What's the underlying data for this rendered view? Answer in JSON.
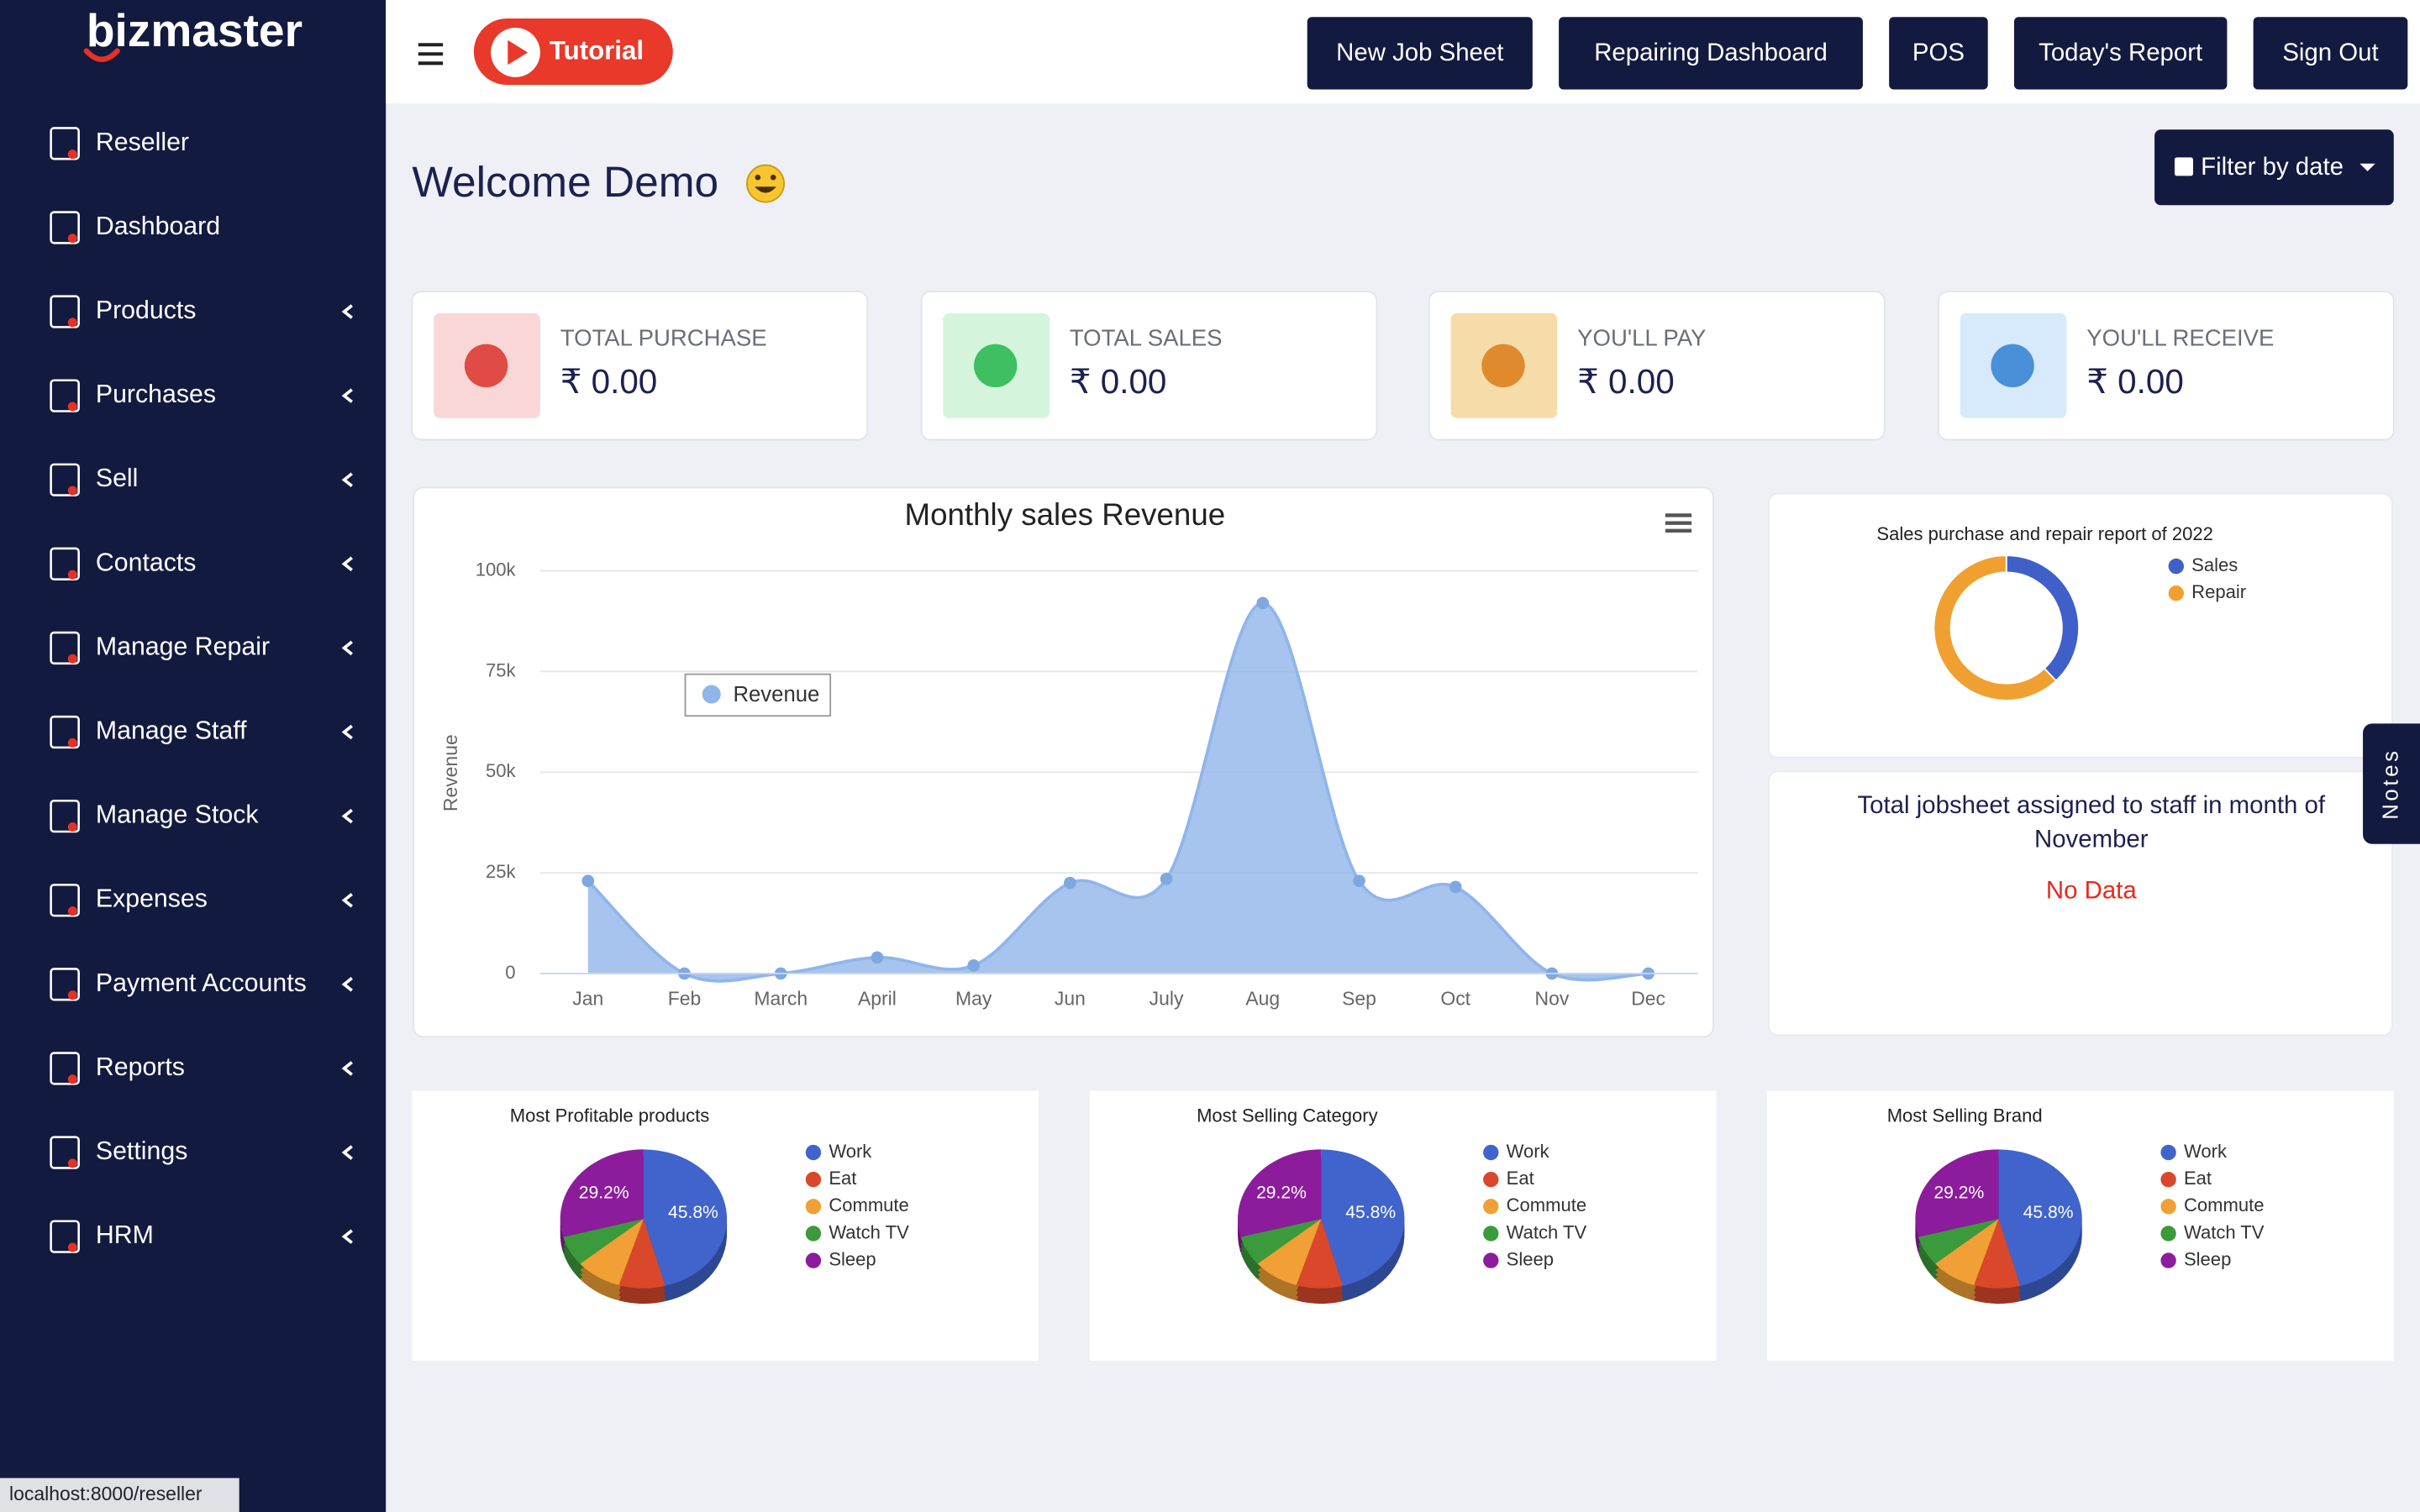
{
  "sidebar": {
    "brand": "bizmaster",
    "menu": [
      {
        "label": "Reseller",
        "submenu": false
      },
      {
        "label": "Dashboard",
        "submenu": false
      },
      {
        "label": "Products",
        "submenu": true
      },
      {
        "label": "Purchases",
        "submenu": true
      },
      {
        "label": "Sell",
        "submenu": true
      },
      {
        "label": "Contacts",
        "submenu": true
      },
      {
        "label": "Manage Repair",
        "submenu": true
      },
      {
        "label": "Manage Staff",
        "submenu": true
      },
      {
        "label": "Manage Stock",
        "submenu": true
      },
      {
        "label": "Expenses",
        "submenu": true
      },
      {
        "label": "Payment Accounts",
        "submenu": true
      },
      {
        "label": "Reports",
        "submenu": true
      },
      {
        "label": "Settings",
        "submenu": true
      },
      {
        "label": "HRM",
        "submenu": true
      }
    ]
  },
  "topbar": {
    "tutorial": "Tutorial",
    "buttons": [
      "New Job Sheet",
      "Repairing Dashboard",
      "POS",
      "Today's Report",
      "Sign Out"
    ]
  },
  "welcome": "Welcome Demo",
  "filter": "Filter by date",
  "cards": [
    {
      "label": "TOTAL PURCHASE",
      "value": "₹ 0.00"
    },
    {
      "label": "TOTAL SALES",
      "value": "₹ 0.00"
    },
    {
      "label": "YOU'LL PAY",
      "value": "₹ 0.00"
    },
    {
      "label": "YOU'LL RECEIVE",
      "value": "₹ 0.00"
    }
  ],
  "jobsheet": {
    "title": "Total jobsheet assigned to staff in month of November",
    "message": "No Data"
  },
  "notes": "Notes",
  "status_bar": "localhost:8000/reseller",
  "chart_data": [
    {
      "type": "area",
      "title": "Monthly sales Revenue",
      "y_label": "Revenue",
      "categories": [
        "Jan",
        "Feb",
        "March",
        "April",
        "May",
        "Jun",
        "July",
        "Aug",
        "Sep",
        "Oct",
        "Nov",
        "Dec"
      ],
      "series": [
        {
          "name": "Revenue",
          "color": "#90b5ea",
          "values": [
            23000,
            0,
            0,
            4000,
            2000,
            22500,
            23500,
            92000,
            23000,
            21500,
            0,
            0
          ]
        }
      ],
      "ylim": [
        0,
        100000
      ],
      "yticks": [
        0,
        {
          "value": 25000,
          "label": "25k"
        },
        {
          "value": 50000,
          "label": "50k"
        },
        {
          "value": 75000,
          "label": "75k"
        },
        {
          "value": 100000,
          "label": "100k"
        }
      ],
      "grid": true
    },
    {
      "type": "donut",
      "title": "Sales purchase and repair report of 2022",
      "categories": [
        "Sales",
        "Repair"
      ],
      "values": [
        38,
        62
      ],
      "colors": [
        "#3f5fc9",
        "#f0a030"
      ]
    },
    {
      "type": "pie",
      "title": "Most Profitable products",
      "categories": [
        "Work",
        "Eat",
        "Commute",
        "Watch TV",
        "Sleep"
      ],
      "values": [
        45.8,
        9,
        9,
        7,
        29.2
      ],
      "value_labels": [
        "45.8%",
        null,
        null,
        null,
        "29.2%"
      ],
      "colors": [
        "#4063cc",
        "#d9482b",
        "#f0a035",
        "#3b9a3b",
        "#8c1c9c"
      ]
    },
    {
      "type": "pie",
      "title": "Most Selling Category",
      "categories": [
        "Work",
        "Eat",
        "Commute",
        "Watch TV",
        "Sleep"
      ],
      "values": [
        45.8,
        9,
        9,
        7,
        29.2
      ],
      "value_labels": [
        "45.8%",
        null,
        null,
        null,
        "29.2%"
      ],
      "colors": [
        "#4063cc",
        "#d9482b",
        "#f0a035",
        "#3b9a3b",
        "#8c1c9c"
      ]
    },
    {
      "type": "pie",
      "title": "Most Selling Brand",
      "categories": [
        "Work",
        "Eat",
        "Commute",
        "Watch TV",
        "Sleep"
      ],
      "values": [
        45.8,
        9,
        9,
        7,
        29.2
      ],
      "value_labels": [
        "45.8%",
        null,
        null,
        null,
        "29.2%"
      ],
      "colors": [
        "#4063cc",
        "#d9482b",
        "#f0a035",
        "#3b9a3b",
        "#8c1c9c"
      ]
    }
  ]
}
